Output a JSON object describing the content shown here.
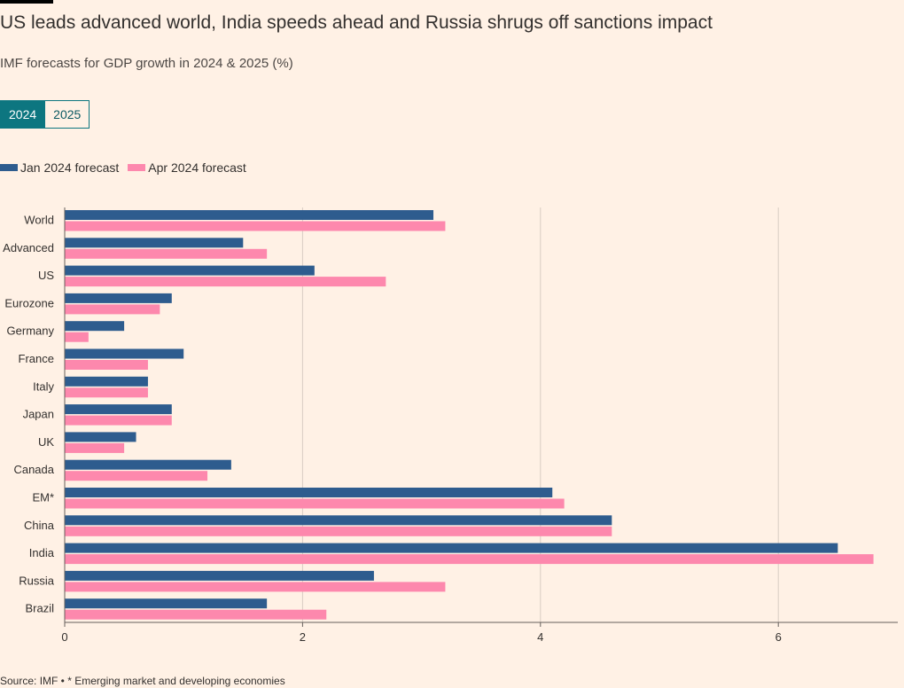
{
  "header": {
    "title": "US leads advanced world, India speeds ahead and Russia shrugs off sanctions impact",
    "subtitle": "IMF forecasts for GDP growth in 2024 & 2025 (%)"
  },
  "toggle": {
    "options": [
      {
        "label": "2024",
        "selected": true
      },
      {
        "label": "2025",
        "selected": false
      }
    ],
    "active_color": "#0d7680"
  },
  "legend": {
    "items": [
      {
        "label": "Jan 2024 forecast",
        "color": "#2e5c8e"
      },
      {
        "label": "Apr 2024 forecast",
        "color": "#fd88ad"
      }
    ]
  },
  "chart_data": {
    "type": "bar",
    "orientation": "horizontal",
    "categories": [
      "World",
      "Advanced",
      "US",
      "Eurozone",
      "Germany",
      "France",
      "Italy",
      "Japan",
      "UK",
      "Canada",
      "EM*",
      "China",
      "India",
      "Russia",
      "Brazil"
    ],
    "series": [
      {
        "name": "Jan 2024 forecast",
        "color": "#2e5c8e",
        "values": [
          3.1,
          1.5,
          2.1,
          0.9,
          0.5,
          1.0,
          0.7,
          0.9,
          0.6,
          1.4,
          4.1,
          4.6,
          6.5,
          2.6,
          1.7
        ]
      },
      {
        "name": "Apr 2024 forecast",
        "color": "#fd88ad",
        "values": [
          3.2,
          1.7,
          2.7,
          0.8,
          0.2,
          0.7,
          0.7,
          0.9,
          0.5,
          1.2,
          4.2,
          4.6,
          6.8,
          3.2,
          2.2
        ]
      }
    ],
    "xlim": [
      0,
      7
    ],
    "xticks": [
      0,
      2,
      4,
      6
    ],
    "grid": true,
    "legend_position": "top-left"
  },
  "footer": {
    "source": "Source: IMF • * Emerging market and developing economies"
  }
}
